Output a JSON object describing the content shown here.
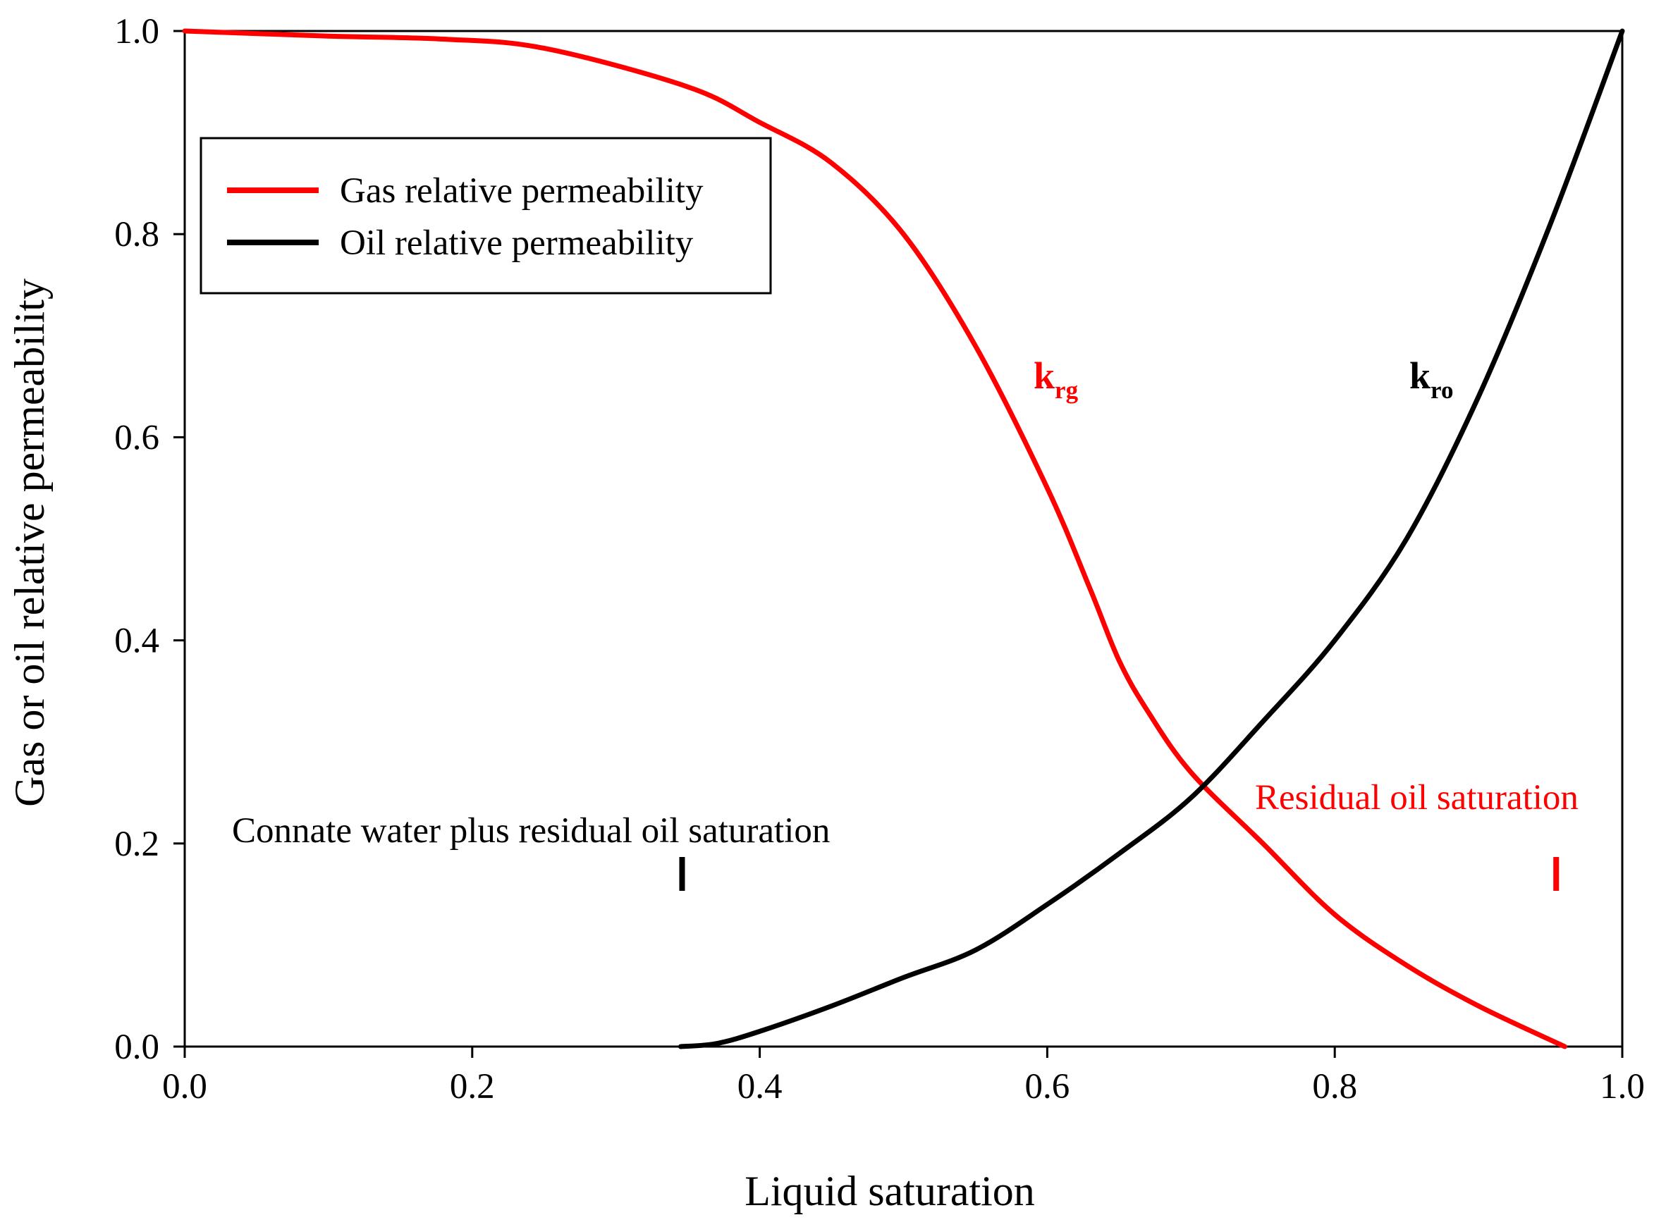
{
  "chart_data": {
    "type": "line",
    "title": "",
    "xlabel": "Liquid saturation",
    "ylabel": "Gas or oil relative permeability",
    "xlim": [
      0.0,
      1.0
    ],
    "ylim": [
      0.0,
      1.0
    ],
    "xticks": [
      "0.0",
      "0.2",
      "0.4",
      "0.6",
      "0.8",
      "1.0"
    ],
    "yticks": [
      "0.0",
      "0.2",
      "0.4",
      "0.6",
      "0.8",
      "1.0"
    ],
    "grid": false,
    "legend_position": "top-left",
    "series": [
      {
        "name": "Gas relative permeability",
        "color": "#ff0000",
        "x": [
          0.0,
          0.1,
          0.18,
          0.25,
          0.35,
          0.4,
          0.45,
          0.5,
          0.55,
          0.6,
          0.63,
          0.65,
          0.67,
          0.7,
          0.75,
          0.8,
          0.85,
          0.9,
          0.96
        ],
        "y": [
          1.0,
          0.995,
          0.992,
          0.983,
          0.945,
          0.91,
          0.87,
          0.8,
          0.69,
          0.55,
          0.45,
          0.38,
          0.33,
          0.27,
          0.2,
          0.13,
          0.08,
          0.04,
          0.0
        ]
      },
      {
        "name": "Oil relative permeability",
        "color": "#000000",
        "x": [
          0.345,
          0.37,
          0.4,
          0.45,
          0.5,
          0.55,
          0.6,
          0.65,
          0.7,
          0.75,
          0.8,
          0.85,
          0.9,
          0.95,
          1.0
        ],
        "y": [
          0.0,
          0.003,
          0.015,
          0.04,
          0.068,
          0.095,
          0.14,
          0.19,
          0.245,
          0.32,
          0.4,
          0.5,
          0.64,
          0.81,
          1.0
        ]
      }
    ],
    "curve_labels": [
      {
        "main": "k",
        "sub": "rg",
        "x": 0.59,
        "y": 0.645,
        "color": "#ff0000"
      },
      {
        "main": "k",
        "sub": "ro",
        "x": 0.853,
        "y": 0.645,
        "color": "#000000"
      }
    ],
    "annotations": [
      {
        "text": "Connate water plus residual oil saturation",
        "x": 0.033,
        "y": 0.21,
        "color": "#000000"
      },
      {
        "text": "Residual oil saturation",
        "x": 0.745,
        "y": 0.245,
        "color": "#ff0000"
      }
    ],
    "markers": [
      {
        "x": 0.346,
        "y": 0.17,
        "color": "#000000"
      },
      {
        "x": 0.954,
        "y": 0.17,
        "color": "#ff0000"
      }
    ]
  }
}
